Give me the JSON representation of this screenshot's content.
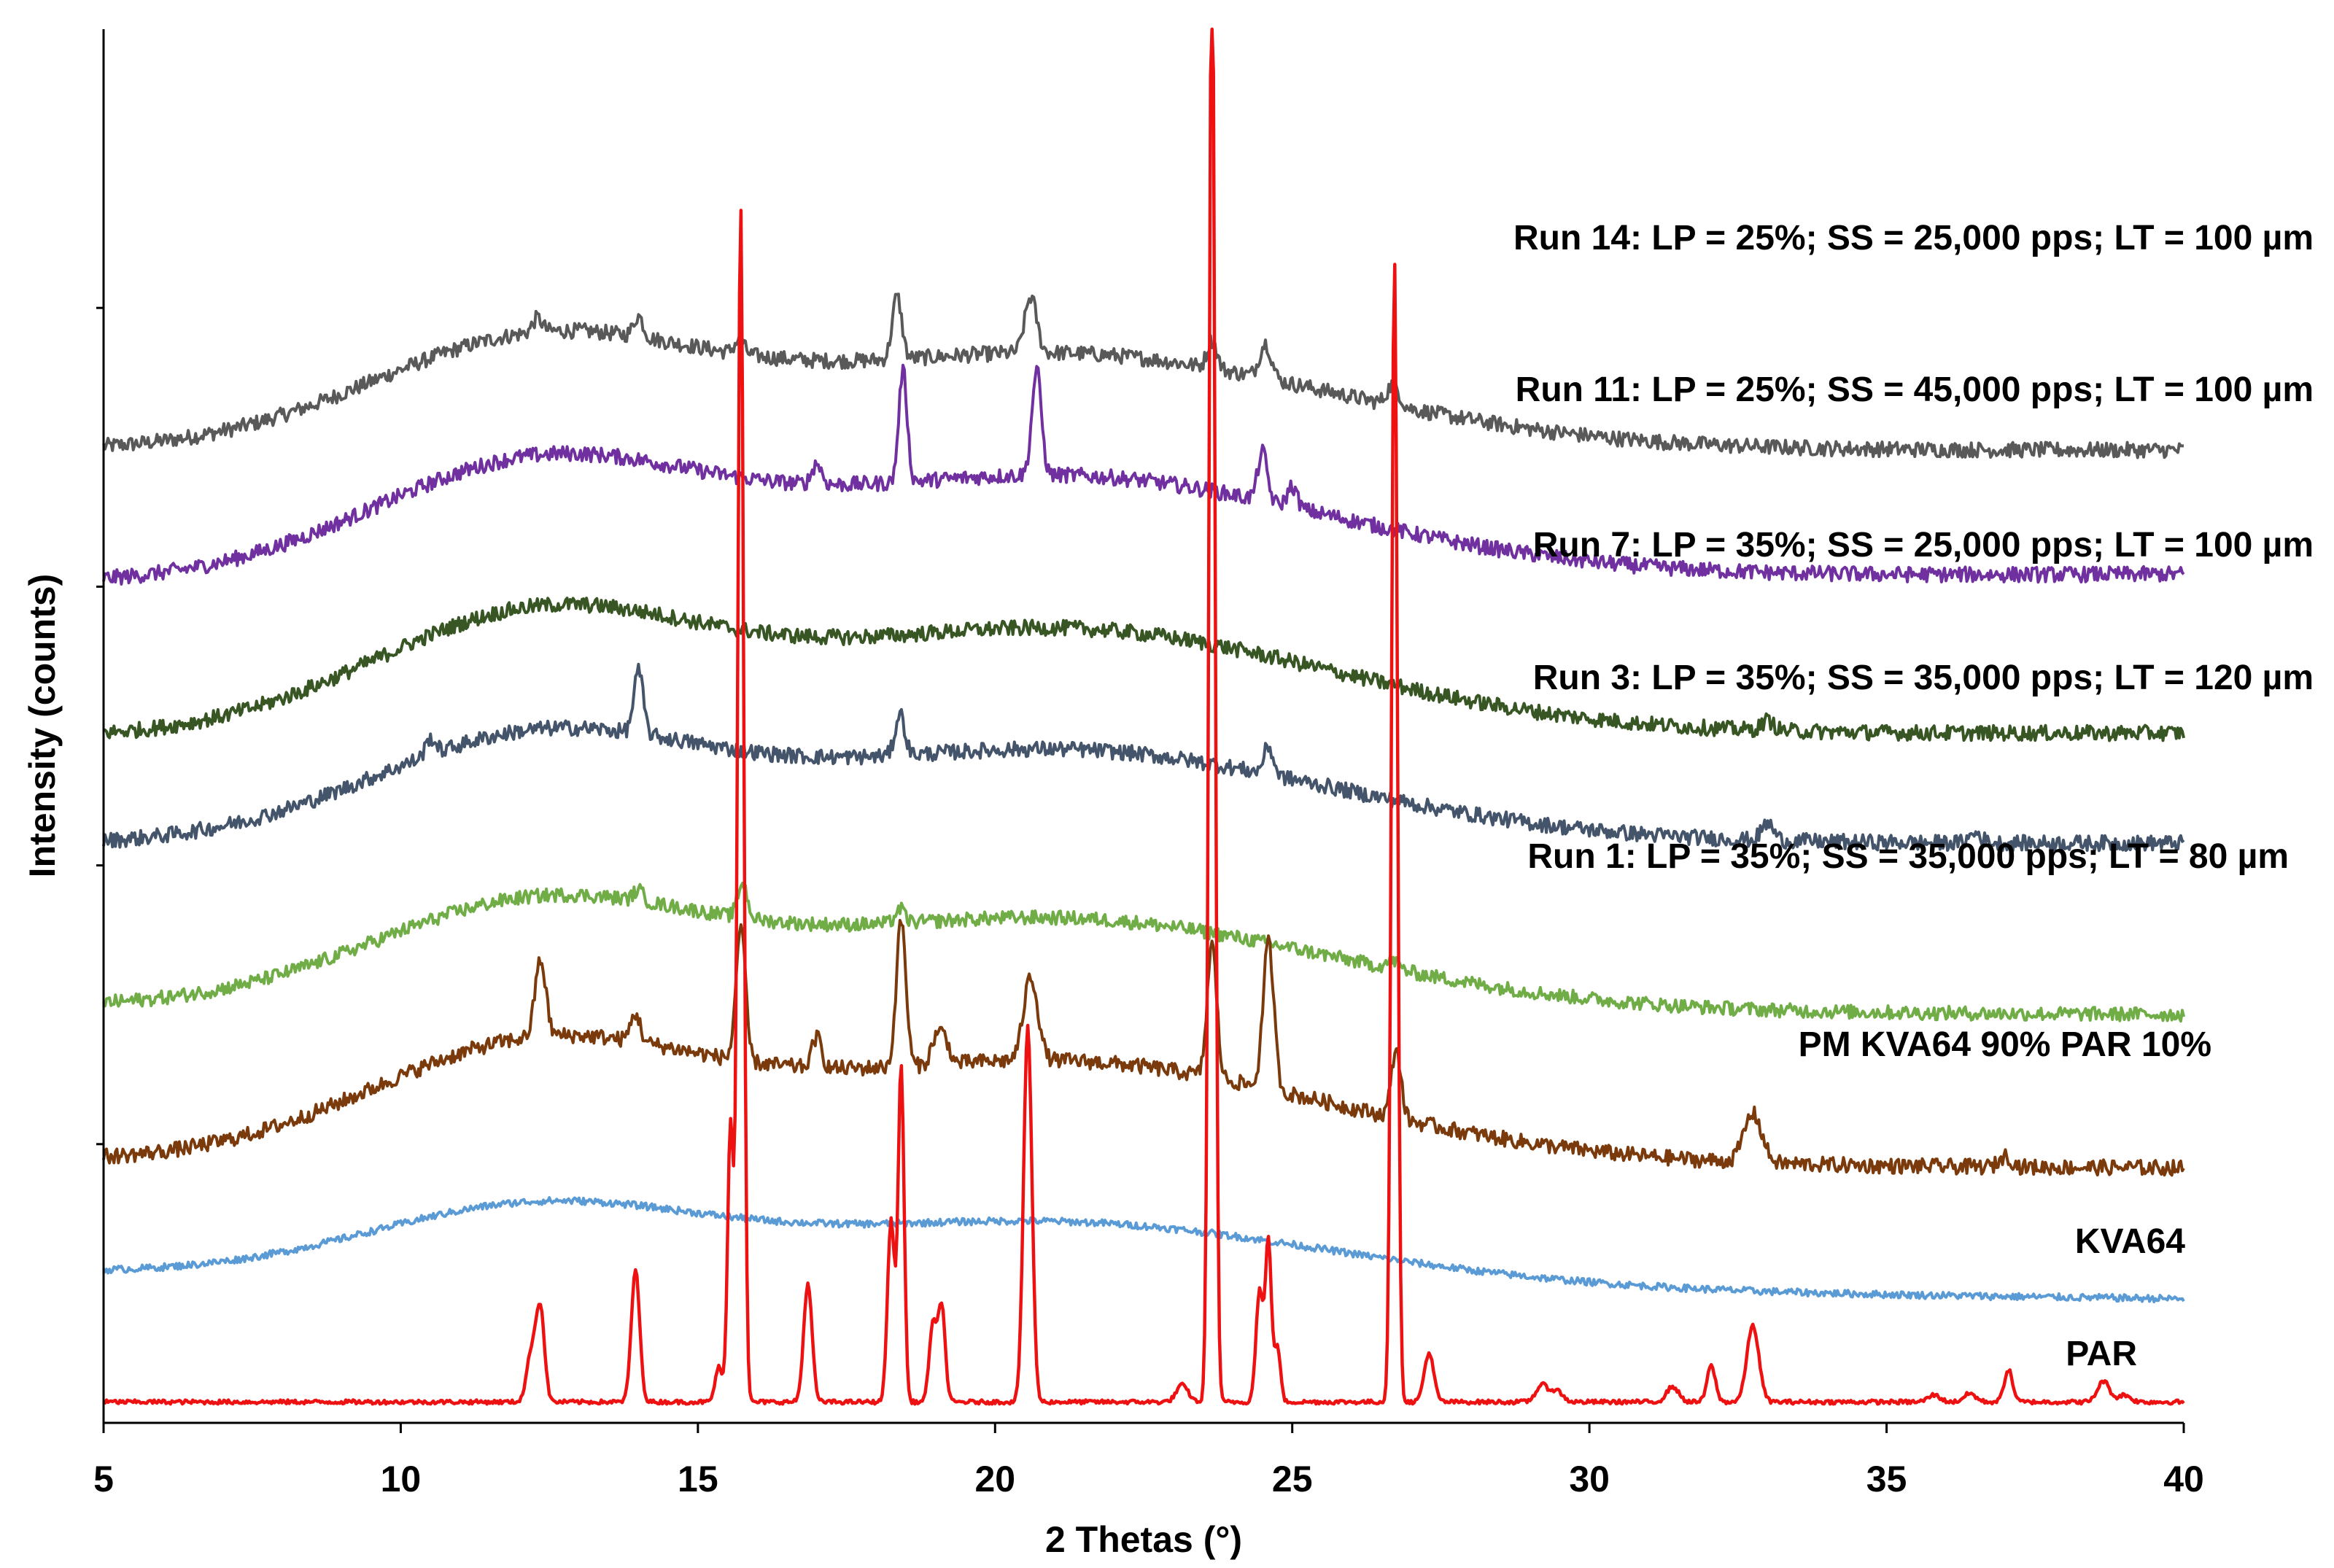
{
  "chart_data": {
    "type": "line",
    "xlabel": "2 Thetas (°)",
    "ylabel": "Intensity (counts)",
    "xlim": [
      5,
      40
    ],
    "x_ticks": [
      "5",
      "10",
      "15",
      "20",
      "25",
      "30",
      "35",
      "40"
    ],
    "ylim": [
      0,
      100
    ],
    "y_ticks_shown": false,
    "grid": false,
    "legend": "labels placed to the right of each trace",
    "series": [
      {
        "name": "PAR",
        "label": "PAR",
        "color": "#ee1111",
        "baseline": 1.5,
        "hump": 0,
        "tilt": 0,
        "noise": 0.15,
        "peaks": [
          [
            12.2,
            3.5,
            0.08
          ],
          [
            12.35,
            6.5,
            0.07
          ],
          [
            13.95,
            9.5,
            0.07
          ],
          [
            15.35,
            2.5,
            0.06
          ],
          [
            15.55,
            20,
            0.05
          ],
          [
            15.72,
            86,
            0.05
          ],
          [
            16.85,
            8.5,
            0.07
          ],
          [
            18.25,
            13,
            0.06
          ],
          [
            18.42,
            24,
            0.05
          ],
          [
            18.95,
            5.5,
            0.06
          ],
          [
            19.1,
            7,
            0.06
          ],
          [
            20.55,
            27,
            0.07
          ],
          [
            23.15,
            1.2,
            0.1
          ],
          [
            23.65,
            108,
            0.05
          ],
          [
            24.45,
            8,
            0.06
          ],
          [
            24.6,
            11.5,
            0.05
          ],
          [
            24.75,
            4,
            0.05
          ],
          [
            26.72,
            82,
            0.05
          ],
          [
            27.3,
            3.5,
            0.08
          ],
          [
            29.2,
            1.2,
            0.1
          ],
          [
            29.45,
            0.8,
            0.1
          ],
          [
            31.4,
            1.1,
            0.1
          ],
          [
            32.05,
            2.6,
            0.07
          ],
          [
            32.75,
            5.5,
            0.1
          ],
          [
            35.8,
            0.5,
            0.1
          ],
          [
            36.4,
            0.6,
            0.1
          ],
          [
            37.05,
            2.3,
            0.07
          ],
          [
            38.65,
            1.5,
            0.1
          ],
          [
            39.0,
            0.5,
            0.1
          ]
        ]
      },
      {
        "name": "KVA64",
        "label": "KVA64",
        "color": "#5b9bd5",
        "baseline": 10.8,
        "hump": 5,
        "tilt": -1.9,
        "noise": 0.25,
        "peaks": []
      },
      {
        "name": "PM KVA64 90% PAR 10%",
        "label": "PM KVA64 90% PAR 10%",
        "color": "#7a3a0c",
        "baseline": 18.8,
        "hump": 8.2,
        "tilt": -0.5,
        "noise": 0.55,
        "peaks": [
          [
            12.35,
            5.5,
            0.09
          ],
          [
            13.95,
            2,
            0.08
          ],
          [
            15.72,
            9.5,
            0.08
          ],
          [
            17.0,
            2.2,
            0.08
          ],
          [
            18.42,
            10.5,
            0.08
          ],
          [
            19.0,
            1.8,
            0.08
          ],
          [
            19.15,
            1.8,
            0.08
          ],
          [
            20.6,
            6,
            0.12
          ],
          [
            23.65,
            9.5,
            0.08
          ],
          [
            24.6,
            10.5,
            0.09
          ],
          [
            26.75,
            5,
            0.08
          ],
          [
            32.75,
            3.5,
            0.15
          ],
          [
            37.0,
            0.8,
            0.1
          ]
        ]
      },
      {
        "name": "Run 1",
        "label": "Run 1: LP = 35%; SS = 35,000 pps; LT = 80 µm",
        "color": "#70ad47",
        "baseline": 29.9,
        "hump": 7.3,
        "tilt": -0.6,
        "noise": 0.5,
        "peaks": [
          [
            14.0,
            0.8,
            0.08
          ],
          [
            15.75,
            2.5,
            0.08
          ],
          [
            18.4,
            1,
            0.08
          ],
          [
            26.7,
            0.6,
            0.1
          ]
        ]
      },
      {
        "name": "Run 3",
        "label": "Run 3: LP = 35%; SS = 35,000 pps; LT = 120 µm",
        "color": "#44546a",
        "baseline": 41.5,
        "hump": 7.5,
        "tilt": 0.1,
        "noise": 0.55,
        "peaks": [
          [
            10.5,
            1.2,
            0.08
          ],
          [
            14.0,
            4.5,
            0.08
          ],
          [
            18.4,
            3,
            0.08
          ],
          [
            24.6,
            2,
            0.08
          ],
          [
            33.0,
            1.2,
            0.1
          ],
          [
            36.5,
            0.7,
            0.1
          ]
        ]
      },
      {
        "name": "Run 7",
        "label": "Run 7: LP = 35%; SS = 25,000 pps; LT = 100 µm",
        "color": "#375623",
        "baseline": 49.2,
        "hump": 8.5,
        "tilt": 0.3,
        "noise": 0.55,
        "peaks": [
          [
            33.0,
            0.7,
            0.1
          ]
        ]
      },
      {
        "name": "Run 11",
        "label": "Run 11: LP = 25%; SS = 45,000 pps; LT = 100 µm",
        "color": "#7030a0",
        "baseline": 60.3,
        "hump": 8.2,
        "tilt": 0.6,
        "noise": 0.55,
        "peaks": [
          [
            17.0,
            1.5,
            0.08
          ],
          [
            18.45,
            8,
            0.07
          ],
          [
            20.7,
            7.5,
            0.08
          ],
          [
            24.5,
            3.5,
            0.08
          ],
          [
            25.0,
            1.5,
            0.08
          ]
        ]
      },
      {
        "name": "Run 14",
        "label": "Run 14: LP = 25%; SS = 25,000 pps; LT = 100 µm",
        "color": "#595959",
        "baseline": 69.8,
        "hump": 7.7,
        "tilt": 0,
        "noise": 0.55,
        "peaks": [
          [
            12.3,
            1,
            0.08
          ],
          [
            14.0,
            1.5,
            0.08
          ],
          [
            15.7,
            1,
            0.08
          ],
          [
            18.35,
            4.5,
            0.08
          ],
          [
            20.6,
            4,
            0.1
          ],
          [
            23.65,
            2,
            0.08
          ],
          [
            24.55,
            2.5,
            0.1
          ],
          [
            26.7,
            1.5,
            0.1
          ]
        ]
      }
    ]
  }
}
